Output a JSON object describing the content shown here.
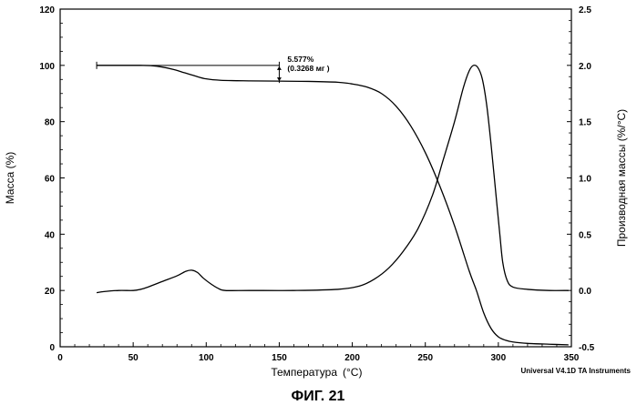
{
  "figure_label": "ФИГ. 21",
  "chart_data": {
    "type": "line",
    "title": "",
    "xlabel": "Температура",
    "xlabel_unit": "(°C)",
    "ylabel_left": "Масса (%)",
    "ylabel_right": "Производная массы (%/°C)",
    "credit": "Universal V4.1D TA Instruments",
    "xlim": [
      0,
      350
    ],
    "ylim_left": [
      0,
      120
    ],
    "ylim_right": [
      -0.5,
      2.5
    ],
    "x_ticks": [
      0,
      50,
      100,
      150,
      200,
      250,
      300,
      350
    ],
    "y_ticks_left": [
      0,
      20,
      40,
      60,
      80,
      100,
      120
    ],
    "y_ticks_right": [
      "-0.5",
      "0.0",
      "0.5",
      "1.0",
      "1.5",
      "2.0",
      "2.5"
    ],
    "annotation": {
      "line1": "5.577%",
      "line2": "(0.3268 мг )",
      "x_start": 25,
      "x_end": 150,
      "y_top": 100,
      "y_bottom": 94.4
    },
    "series": [
      {
        "name": "mass",
        "axis": "left",
        "points": [
          [
            25,
            100
          ],
          [
            40,
            100
          ],
          [
            55,
            100
          ],
          [
            62,
            99.9
          ],
          [
            70,
            99.4
          ],
          [
            78,
            98.5
          ],
          [
            85,
            97.4
          ],
          [
            92,
            96.3
          ],
          [
            100,
            95.2
          ],
          [
            110,
            94.7
          ],
          [
            130,
            94.5
          ],
          [
            150,
            94.4
          ],
          [
            170,
            94.3
          ],
          [
            190,
            94.0
          ],
          [
            200,
            93.4
          ],
          [
            210,
            92.3
          ],
          [
            220,
            90
          ],
          [
            230,
            85.5
          ],
          [
            240,
            78.5
          ],
          [
            250,
            69
          ],
          [
            260,
            57
          ],
          [
            270,
            43
          ],
          [
            280,
            27
          ],
          [
            285,
            20
          ],
          [
            290,
            12
          ],
          [
            295,
            6.5
          ],
          [
            300,
            3.5
          ],
          [
            305,
            2.3
          ],
          [
            310,
            1.7
          ],
          [
            320,
            1.2
          ],
          [
            335,
            0.9
          ],
          [
            348,
            0.7
          ]
        ]
      },
      {
        "name": "derivative",
        "axis": "right",
        "points": [
          [
            25,
            -0.02
          ],
          [
            30,
            -0.01
          ],
          [
            40,
            0.0
          ],
          [
            50,
            0.0
          ],
          [
            55,
            0.01
          ],
          [
            60,
            0.03
          ],
          [
            70,
            0.08
          ],
          [
            80,
            0.13
          ],
          [
            86,
            0.17
          ],
          [
            90,
            0.18
          ],
          [
            94,
            0.16
          ],
          [
            98,
            0.11
          ],
          [
            103,
            0.06
          ],
          [
            108,
            0.02
          ],
          [
            113,
            0.0
          ],
          [
            130,
            0.0
          ],
          [
            160,
            0.0
          ],
          [
            190,
            0.01
          ],
          [
            205,
            0.04
          ],
          [
            215,
            0.1
          ],
          [
            225,
            0.2
          ],
          [
            235,
            0.35
          ],
          [
            245,
            0.55
          ],
          [
            255,
            0.85
          ],
          [
            262,
            1.15
          ],
          [
            270,
            1.5
          ],
          [
            276,
            1.8
          ],
          [
            280,
            1.95
          ],
          [
            283,
            2.0
          ],
          [
            286,
            1.98
          ],
          [
            289,
            1.88
          ],
          [
            292,
            1.65
          ],
          [
            295,
            1.3
          ],
          [
            298,
            0.9
          ],
          [
            301,
            0.5
          ],
          [
            303,
            0.25
          ],
          [
            306,
            0.09
          ],
          [
            310,
            0.03
          ],
          [
            320,
            0.01
          ],
          [
            335,
            0.0
          ],
          [
            348,
            0.0
          ]
        ]
      }
    ]
  }
}
